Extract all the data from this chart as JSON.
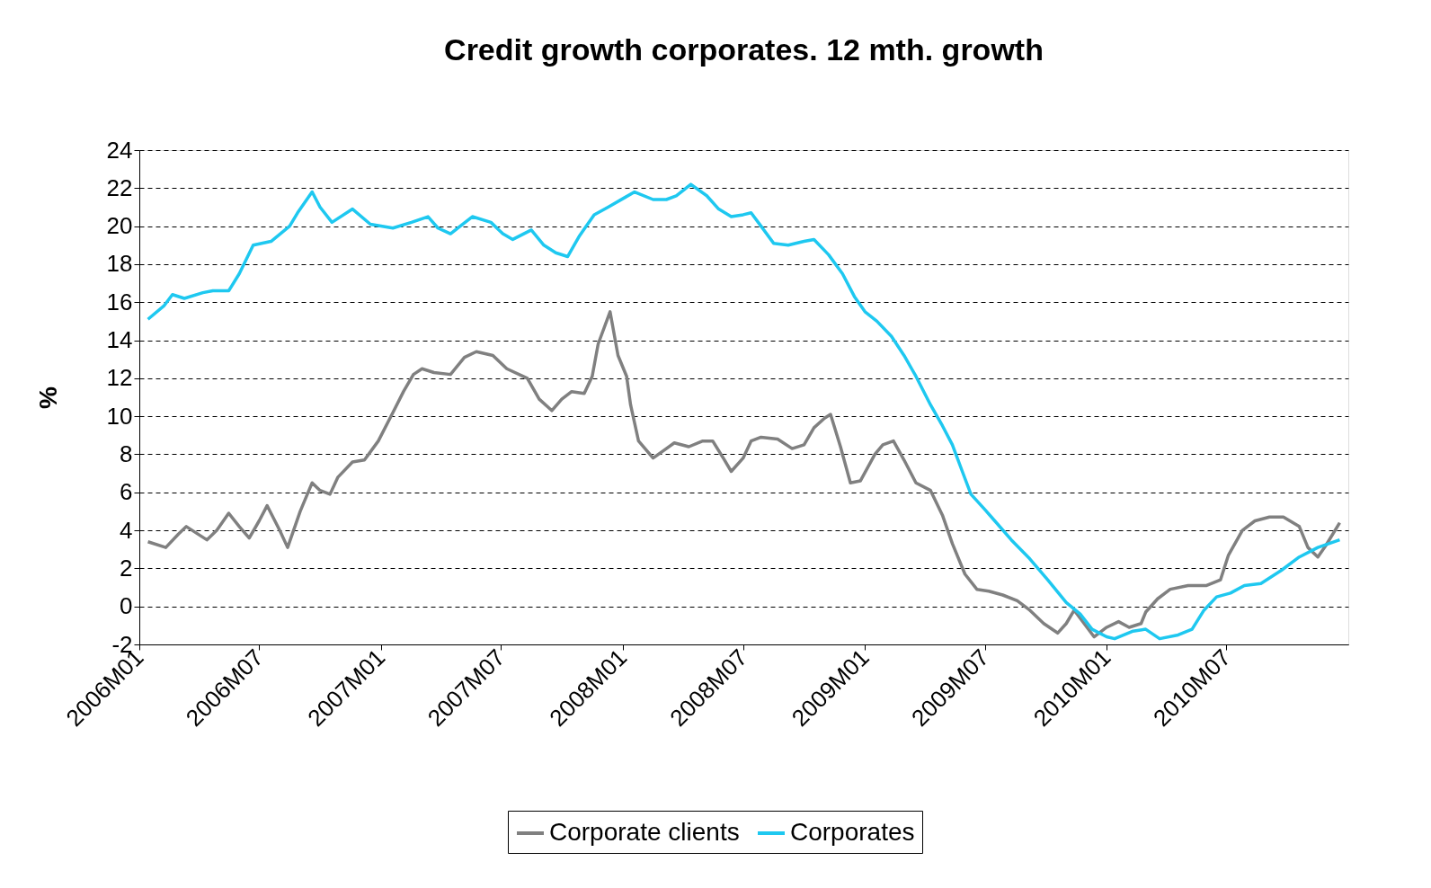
{
  "chart_data": {
    "type": "line",
    "title": "Credit growth corporates. 12 mth. growth",
    "ylabel": "%",
    "xlim": [
      "2006-01",
      "2011-01"
    ],
    "xticks": [
      {
        "value": "2006-01",
        "label": "2006M01"
      },
      {
        "value": "2006-07",
        "label": "2006M07"
      },
      {
        "value": "2007-01",
        "label": "2007M01"
      },
      {
        "value": "2007-07",
        "label": "2007M07"
      },
      {
        "value": "2008-01",
        "label": "2008M01"
      },
      {
        "value": "2008-07",
        "label": "2008M07"
      },
      {
        "value": "2009-01",
        "label": "2009M01"
      },
      {
        "value": "2009-07",
        "label": "2009M07"
      },
      {
        "value": "2010-01",
        "label": "2010M01"
      },
      {
        "value": "2010-07",
        "label": "2010M07"
      }
    ],
    "ylim": [
      -2,
      24
    ],
    "yticks": [
      -2,
      0,
      2,
      4,
      6,
      8,
      10,
      12,
      14,
      16,
      18,
      20,
      22,
      24
    ],
    "grid": "y",
    "legend": "bottom",
    "marker": "none",
    "line_style": "solid",
    "series": [
      {
        "name": "Corporate clients",
        "color": "#808080",
        "x": [
          "2006-01-14",
          "2006-02-10",
          "2006-03-01",
          "2006-03-13",
          "2006-04-13",
          "2006-04-28",
          "2006-05-16",
          "2006-06-01",
          "2006-06-16",
          "2006-07-01",
          "2006-07-13",
          "2006-08-01",
          "2006-08-13",
          "2006-09-01",
          "2006-09-19",
          "2006-10-01",
          "2006-10-16",
          "2006-10-28",
          "2006-11-19",
          "2006-12-07",
          "2006-12-28",
          "2007-01-19",
          "2007-02-04",
          "2007-02-19",
          "2007-03-04",
          "2007-03-22",
          "2007-04-16",
          "2007-05-07",
          "2007-05-25",
          "2007-06-19",
          "2007-07-10",
          "2007-08-10",
          "2007-08-28",
          "2007-09-16",
          "2007-10-01",
          "2007-10-16",
          "2007-11-04",
          "2007-11-16",
          "2007-11-25",
          "2007-12-13",
          "2007-12-25",
          "2008-01-07",
          "2008-01-13",
          "2008-01-25",
          "2008-02-16",
          "2008-03-07",
          "2008-03-19",
          "2008-04-10",
          "2008-05-01",
          "2008-05-16",
          "2008-06-01",
          "2008-06-13",
          "2008-07-01",
          "2008-07-13",
          "2008-07-28",
          "2008-08-22",
          "2008-09-13",
          "2008-10-01",
          "2008-10-16",
          "2008-11-01",
          "2008-11-10",
          "2008-11-25",
          "2008-12-10",
          "2008-12-25",
          "2009-01-16",
          "2009-01-28",
          "2009-02-13",
          "2009-03-01",
          "2009-03-19",
          "2009-04-10",
          "2009-04-28",
          "2009-05-13",
          "2009-06-01",
          "2009-06-19",
          "2009-07-07",
          "2009-07-28",
          "2009-08-19",
          "2009-09-07",
          "2009-09-28",
          "2009-10-19",
          "2009-11-01",
          "2009-11-13",
          "2009-11-28",
          "2009-12-13",
          "2010-01-01",
          "2010-01-19",
          "2010-02-04",
          "2010-02-22",
          "2010-03-01",
          "2010-03-19",
          "2010-04-07",
          "2010-05-04",
          "2010-06-01",
          "2010-06-22",
          "2010-07-04",
          "2010-07-25",
          "2010-08-13",
          "2010-09-04",
          "2010-09-25",
          "2010-10-19",
          "2010-11-01",
          "2010-11-16",
          "2010-11-28",
          "2010-12-19"
        ],
        "values": [
          3.4,
          3.1,
          3.8,
          4.2,
          3.5,
          4.0,
          4.9,
          4.2,
          3.6,
          4.5,
          5.3,
          4.0,
          3.1,
          5.0,
          6.5,
          6.1,
          5.9,
          6.8,
          7.6,
          7.7,
          8.7,
          10.2,
          11.3,
          12.2,
          12.5,
          12.3,
          12.2,
          13.1,
          13.4,
          13.2,
          12.5,
          12.0,
          10.9,
          10.3,
          10.9,
          11.3,
          11.2,
          12.1,
          13.8,
          15.5,
          13.2,
          12.1,
          10.6,
          8.7,
          7.8,
          8.3,
          8.6,
          8.4,
          8.7,
          8.7,
          7.8,
          7.1,
          7.8,
          8.7,
          8.9,
          8.8,
          8.3,
          8.5,
          9.4,
          9.9,
          10.1,
          8.4,
          6.5,
          6.6,
          8.0,
          8.5,
          8.7,
          7.7,
          6.5,
          6.1,
          4.8,
          3.3,
          1.7,
          0.9,
          0.8,
          0.6,
          0.3,
          -0.2,
          -0.9,
          -1.4,
          -0.9,
          -0.2,
          -0.9,
          -1.6,
          -1.1,
          -0.8,
          -1.1,
          -0.9,
          -0.3,
          0.4,
          0.9,
          1.1,
          1.1,
          1.4,
          2.7,
          4.0,
          4.5,
          4.7,
          4.7,
          4.2,
          3.1,
          2.6,
          3.2,
          4.4
        ]
      },
      {
        "name": "Corporates",
        "color": "#1ec8f0",
        "x": [
          "2006-01-14",
          "2006-02-07",
          "2006-02-20",
          "2006-03-10",
          "2006-04-07",
          "2006-04-22",
          "2006-05-16",
          "2006-06-01",
          "2006-06-22",
          "2006-07-19",
          "2006-08-16",
          "2006-08-28",
          "2006-09-19",
          "2006-10-01",
          "2006-10-19",
          "2006-11-19",
          "2006-12-16",
          "2007-01-19",
          "2007-02-16",
          "2007-03-13",
          "2007-03-28",
          "2007-04-16",
          "2007-05-19",
          "2007-06-16",
          "2007-07-04",
          "2007-07-19",
          "2007-08-16",
          "2007-09-04",
          "2007-09-22",
          "2007-10-10",
          "2007-10-28",
          "2007-11-19",
          "2007-12-10",
          "2008-01-04",
          "2008-01-19",
          "2008-02-16",
          "2008-03-07",
          "2008-03-22",
          "2008-04-13",
          "2008-05-07",
          "2008-05-25",
          "2008-06-13",
          "2008-07-01",
          "2008-07-13",
          "2008-07-28",
          "2008-08-16",
          "2008-09-07",
          "2008-10-01",
          "2008-10-16",
          "2008-11-07",
          "2008-11-28",
          "2008-12-16",
          "2009-01-01",
          "2009-01-19",
          "2009-02-10",
          "2009-03-01",
          "2009-03-19",
          "2009-04-10",
          "2009-04-28",
          "2009-05-13",
          "2009-05-28",
          "2009-06-10",
          "2009-07-01",
          "2009-07-16",
          "2009-08-10",
          "2009-09-07",
          "2009-10-04",
          "2009-11-01",
          "2009-11-22",
          "2009-12-10",
          "2010-01-01",
          "2010-01-13",
          "2010-02-10",
          "2010-03-01",
          "2010-03-22",
          "2010-04-19",
          "2010-05-10",
          "2010-05-28",
          "2010-06-16",
          "2010-07-07",
          "2010-07-28",
          "2010-08-22",
          "2010-09-22",
          "2010-10-19",
          "2010-11-16",
          "2010-12-19"
        ],
        "values": [
          15.1,
          15.8,
          16.4,
          16.2,
          16.5,
          16.6,
          16.6,
          17.5,
          19.0,
          19.2,
          20.0,
          20.7,
          21.8,
          21.0,
          20.2,
          20.9,
          20.1,
          19.9,
          20.2,
          20.5,
          19.9,
          19.6,
          20.5,
          20.2,
          19.6,
          19.3,
          19.8,
          19.0,
          18.6,
          18.4,
          19.5,
          20.6,
          21.0,
          21.5,
          21.8,
          21.4,
          21.4,
          21.6,
          22.2,
          21.6,
          20.9,
          20.5,
          20.6,
          20.7,
          20.0,
          19.1,
          19.0,
          19.2,
          19.3,
          18.5,
          17.5,
          16.3,
          15.5,
          15.0,
          14.2,
          13.2,
          12.1,
          10.6,
          9.5,
          8.5,
          7.1,
          5.9,
          5.1,
          4.5,
          3.5,
          2.5,
          1.4,
          0.2,
          -0.4,
          -1.2,
          -1.6,
          -1.7,
          -1.3,
          -1.2,
          -1.7,
          -1.5,
          -1.2,
          -0.2,
          0.5,
          0.7,
          1.1,
          1.2,
          1.9,
          2.6,
          3.1,
          3.5
        ]
      }
    ]
  }
}
